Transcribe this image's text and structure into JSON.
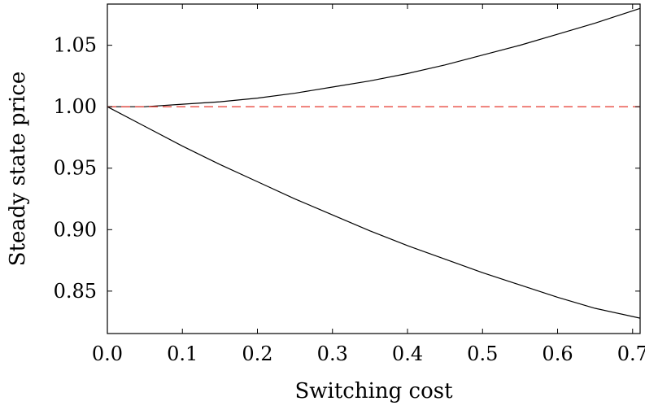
{
  "chart_data": {
    "type": "line",
    "title": "",
    "xlabel": "Switching cost",
    "ylabel": "Steady state price",
    "xlim": [
      0,
      0.71
    ],
    "ylim": [
      0.8155,
      1.0835
    ],
    "xticks": [
      0.0,
      0.1,
      0.2,
      0.3,
      0.4,
      0.5,
      0.6,
      0.7
    ],
    "xtick_labels": [
      "0.0",
      "0.1",
      "0.2",
      "0.3",
      "0.4",
      "0.5",
      "0.6",
      "0.7"
    ],
    "yticks": [
      0.85,
      0.9,
      0.95,
      1.0,
      1.05
    ],
    "ytick_labels": [
      "0.85",
      "0.90",
      "0.95",
      "1.00",
      "1.05"
    ],
    "grid": false,
    "legend": "none",
    "series": [
      {
        "color": "#000000",
        "style": "solid",
        "x": [
          0,
          0.05,
          0.1,
          0.15,
          0.2,
          0.25,
          0.3,
          0.35,
          0.4,
          0.45,
          0.5,
          0.55,
          0.6,
          0.65,
          0.71
        ],
        "y": [
          1.0,
          1.0,
          1.002,
          1.004,
          1.007,
          1.011,
          1.016,
          1.021,
          1.027,
          1.034,
          1.042,
          1.05,
          1.059,
          1.068,
          1.08
        ]
      },
      {
        "color": "#000000",
        "style": "solid",
        "x": [
          0,
          0.05,
          0.1,
          0.15,
          0.2,
          0.25,
          0.3,
          0.35,
          0.4,
          0.45,
          0.5,
          0.55,
          0.6,
          0.65,
          0.71
        ],
        "y": [
          1.0,
          0.984,
          0.968,
          0.953,
          0.939,
          0.925,
          0.912,
          0.899,
          0.887,
          0.876,
          0.865,
          0.855,
          0.845,
          0.836,
          0.828
        ]
      },
      {
        "color": "#e8483f",
        "style": "dashed",
        "x": [
          0,
          0.71
        ],
        "y": [
          1.0,
          1.0
        ]
      }
    ]
  }
}
